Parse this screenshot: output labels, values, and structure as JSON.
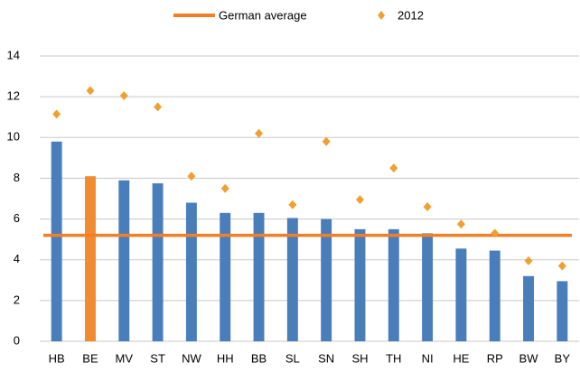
{
  "chart_data": {
    "type": "bar",
    "categories": [
      "HB",
      "BE",
      "MV",
      "ST",
      "NW",
      "HH",
      "BB",
      "SL",
      "SN",
      "SH",
      "TH",
      "NI",
      "HE",
      "RP",
      "BW",
      "BY"
    ],
    "values": [
      9.8,
      8.1,
      7.9,
      7.75,
      6.8,
      6.3,
      6.3,
      6.05,
      6.0,
      5.5,
      5.5,
      5.3,
      4.55,
      4.45,
      3.2,
      2.95
    ],
    "bar_colors": [
      "#4a7ebb",
      "#f28a30",
      "#4a7ebb",
      "#4a7ebb",
      "#4a7ebb",
      "#4a7ebb",
      "#4a7ebb",
      "#4a7ebb",
      "#4a7ebb",
      "#4a7ebb",
      "#4a7ebb",
      "#4a7ebb",
      "#4a7ebb",
      "#4a7ebb",
      "#4a7ebb",
      "#4a7ebb"
    ],
    "average": {
      "name": "German average",
      "value": 5.2,
      "color": "#f07f25"
    },
    "markers": {
      "name": "2012",
      "color": "#f0a030",
      "values": [
        11.15,
        12.3,
        12.05,
        11.5,
        8.1,
        7.5,
        10.2,
        6.7,
        9.8,
        6.95,
        8.5,
        6.6,
        5.75,
        5.3,
        3.95,
        3.7
      ]
    },
    "ylim": [
      0,
      14
    ],
    "yticks": [
      0,
      2,
      4,
      6,
      8,
      10,
      12,
      14
    ],
    "grid": true
  }
}
